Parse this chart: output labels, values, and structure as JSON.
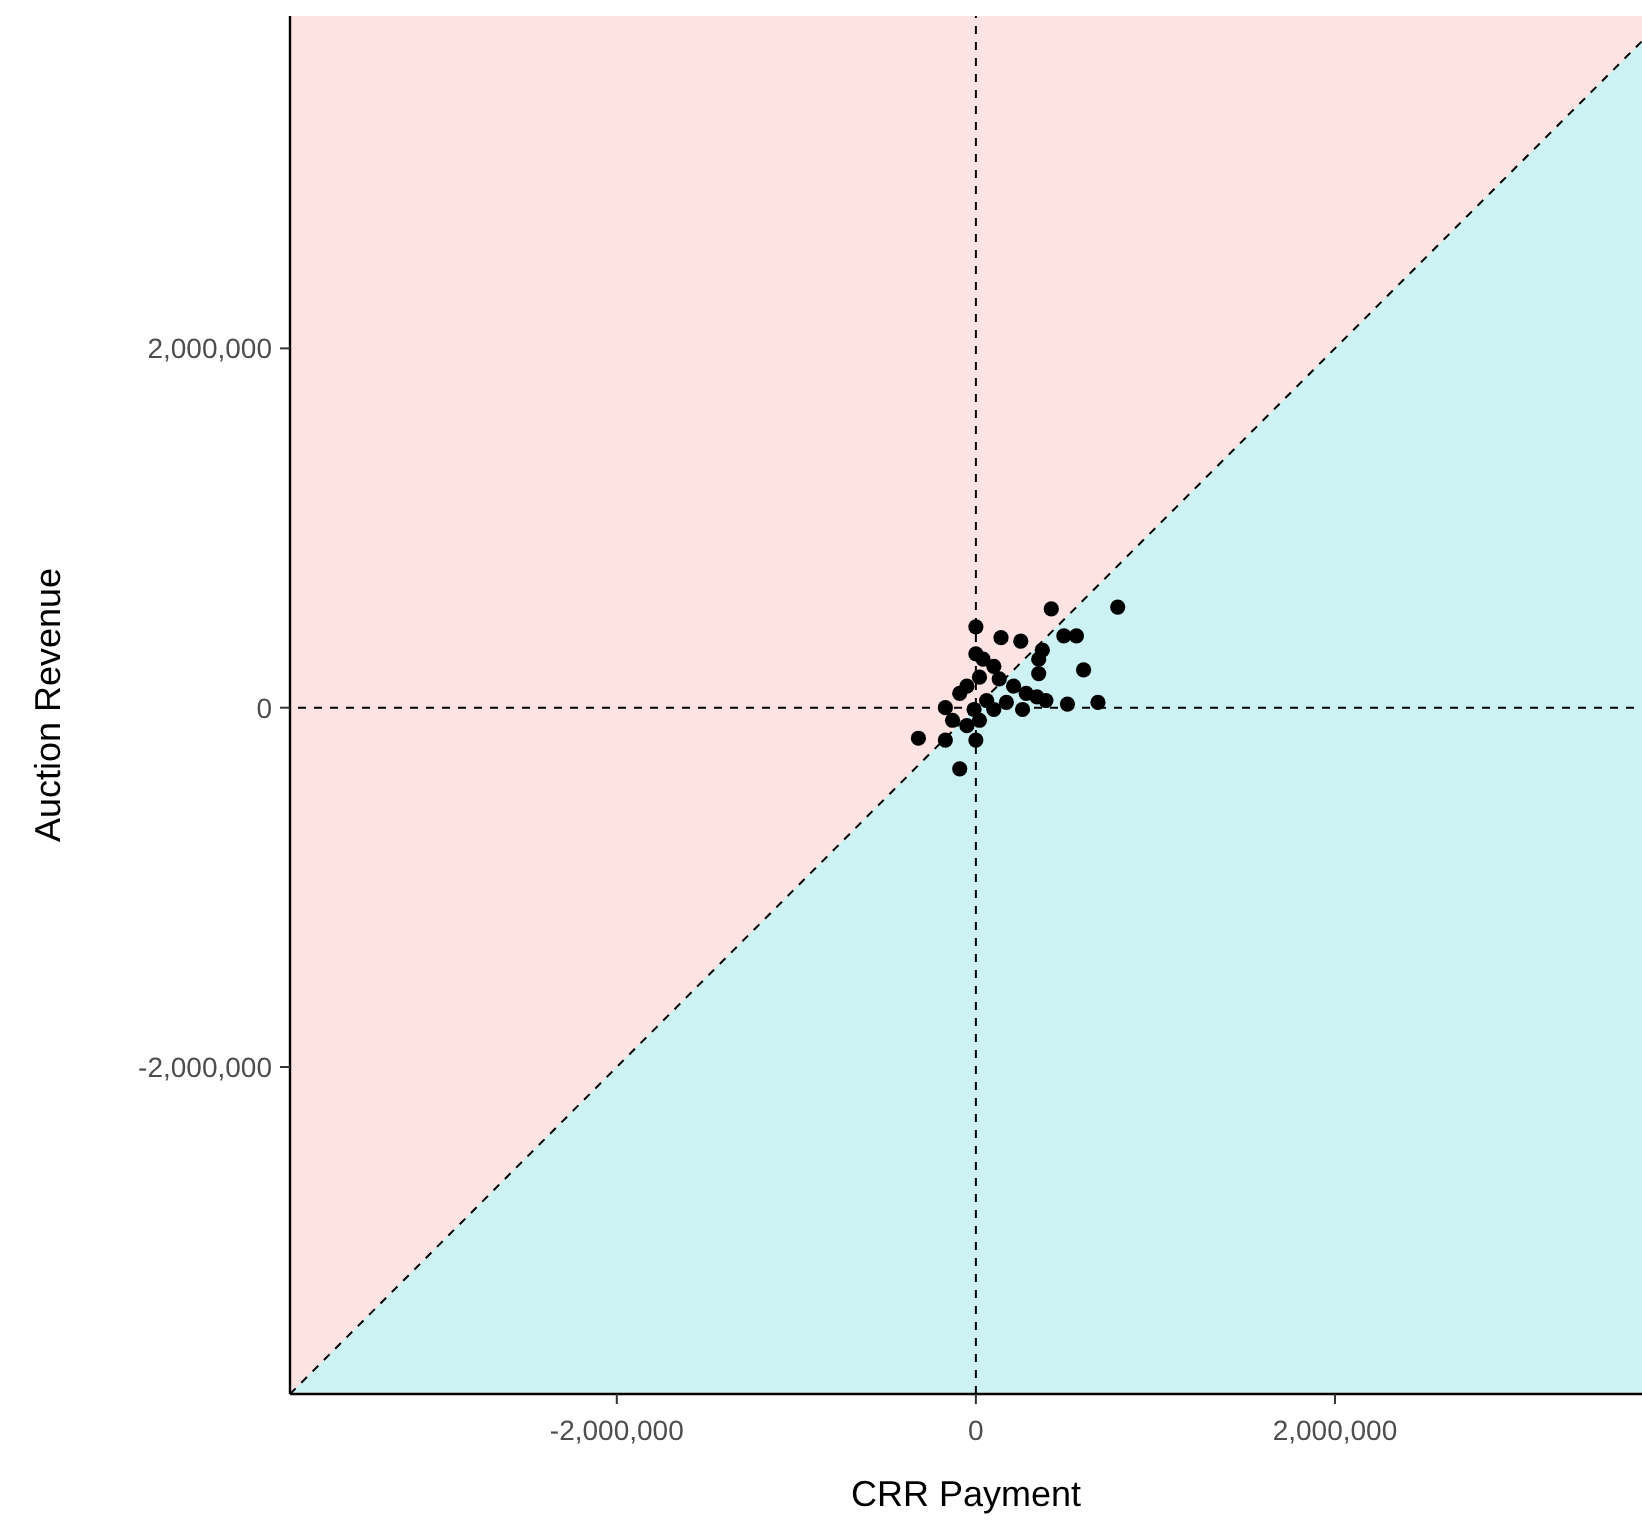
{
  "chart_data": {
    "type": "scatter",
    "xlabel": "CRR Payment",
    "ylabel": "Auction Revenue",
    "xlim": [
      -3820000,
      3710000
    ],
    "ylim": [
      -3820000,
      3850000
    ],
    "xticks": [
      {
        "value": -2000000,
        "label": "-2,000,000"
      },
      0,
      {
        "value": 2000000,
        "label": "2,000,000"
      }
    ],
    "yticks": [
      {
        "value": -2000000,
        "label": "-2,000,000"
      },
      0,
      {
        "value": 2000000,
        "label": "2,000,000"
      }
    ],
    "grid": false,
    "ref_lines": [
      {
        "axis": "x",
        "value": 0,
        "line_style": "dashed",
        "color": "#000000"
      },
      {
        "axis": "y",
        "value": 0,
        "line_style": "dashed",
        "color": "#000000"
      }
    ],
    "series": [
      {
        "type": "line",
        "color": "#000000",
        "line_style": "dashed",
        "x": [
          -3820000,
          3710000
        ],
        "values": [
          -3820000,
          3710000
        ]
      },
      {
        "color": "#000000",
        "marker": "circle",
        "x": [
          790000,
          420000,
          0,
          490000,
          560000,
          140000,
          250000,
          370000,
          0,
          350000,
          600000,
          350000,
          680000,
          510000,
          390000,
          260000,
          -170000,
          -320000,
          -170000,
          0,
          -90000,
          -90000,
          -50000,
          20000,
          100000,
          130000,
          210000,
          280000,
          60000,
          -10000,
          -130000,
          -50000,
          100000,
          170000,
          20000,
          340000,
          40000
        ],
        "values": [
          560000,
          550000,
          450000,
          400000,
          400000,
          390000,
          370000,
          320000,
          300000,
          270000,
          210000,
          190000,
          30000,
          20000,
          40000,
          -10000,
          0,
          -170000,
          -180000,
          -180000,
          -340000,
          80000,
          120000,
          170000,
          230000,
          160000,
          120000,
          80000,
          40000,
          -10000,
          -70000,
          -100000,
          -10000,
          30000,
          -70000,
          60000,
          270000
        ]
      }
    ]
  }
}
